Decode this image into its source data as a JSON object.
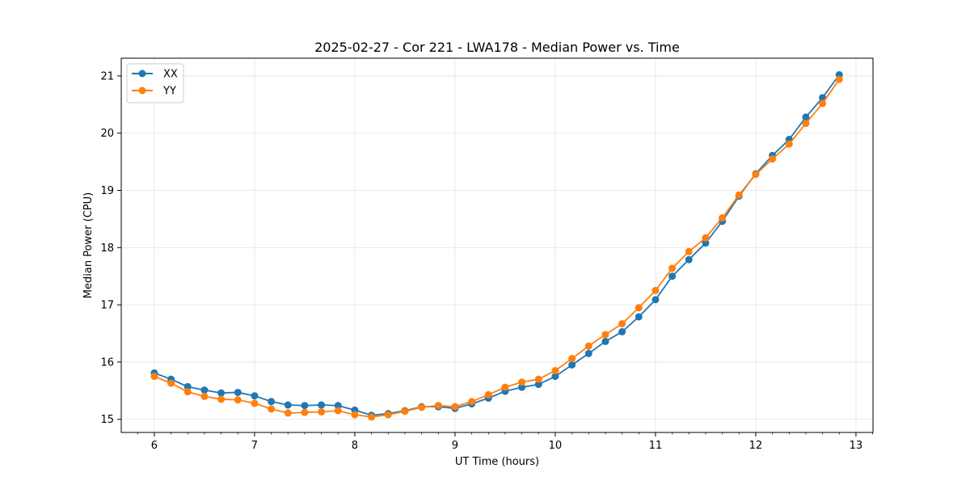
{
  "chart_data": {
    "type": "line",
    "title": "2025-02-27 - Cor 221 - LWA178 - Median Power vs. Time",
    "xlabel": "UT Time (hours)",
    "ylabel": "Median Power (CPU)",
    "xlim": [
      5.67,
      13.17
    ],
    "ylim": [
      14.77,
      21.31
    ],
    "xticks": [
      "6",
      "7",
      "8",
      "9",
      "10",
      "11",
      "12",
      "13"
    ],
    "yticks": [
      "15",
      "16",
      "17",
      "18",
      "19",
      "20",
      "21"
    ],
    "grid": true,
    "legend_position": "top-left",
    "x": [
      6.0,
      6.1667,
      6.3333,
      6.5,
      6.6667,
      6.8333,
      7.0,
      7.1667,
      7.3333,
      7.5,
      7.6667,
      7.8333,
      8.0,
      8.1667,
      8.3333,
      8.5,
      8.6667,
      8.8333,
      9.0,
      9.1667,
      9.3333,
      9.5,
      9.6667,
      9.8333,
      10.0,
      10.1667,
      10.3333,
      10.5,
      10.6667,
      10.8333,
      11.0,
      11.1667,
      11.3333,
      11.5,
      11.6667,
      11.8333,
      12.0,
      12.1667,
      12.3333,
      12.5,
      12.6667,
      12.8333
    ],
    "series": [
      {
        "name": "XX",
        "color": "#1f77b4",
        "values": [
          15.81,
          15.7,
          15.57,
          15.51,
          15.46,
          15.47,
          15.41,
          15.31,
          15.25,
          15.24,
          15.25,
          15.24,
          15.16,
          15.07,
          15.1,
          15.15,
          15.22,
          15.22,
          15.19,
          15.27,
          15.37,
          15.49,
          15.56,
          15.61,
          15.75,
          15.95,
          16.15,
          16.36,
          16.53,
          16.79,
          17.09,
          17.5,
          17.79,
          18.08,
          18.46,
          18.9,
          19.29,
          19.61,
          19.89,
          20.28,
          20.62,
          21.02
        ]
      },
      {
        "name": "YY",
        "color": "#ff7f0e",
        "values": [
          15.75,
          15.63,
          15.48,
          15.4,
          15.35,
          15.34,
          15.28,
          15.18,
          15.11,
          15.12,
          15.13,
          15.15,
          15.08,
          15.04,
          15.08,
          15.14,
          15.21,
          15.24,
          15.22,
          15.31,
          15.43,
          15.56,
          15.65,
          15.7,
          15.85,
          16.06,
          16.28,
          16.48,
          16.67,
          16.95,
          17.25,
          17.64,
          17.93,
          18.17,
          18.52,
          18.92,
          19.28,
          19.55,
          19.81,
          20.17,
          20.52,
          20.94
        ]
      }
    ]
  }
}
